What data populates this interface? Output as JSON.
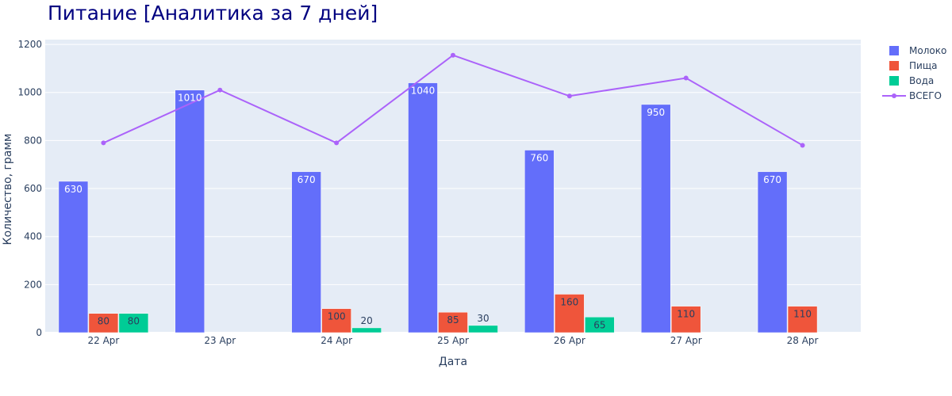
{
  "chart_data": {
    "type": "bar",
    "title": "Питание [Аналитика за 7 дней]",
    "xlabel": "Дата",
    "ylabel": "Количество, грамм",
    "categories": [
      "22 Apr",
      "23 Apr",
      "24 Apr",
      "25 Apr",
      "26 Apr",
      "27 Apr",
      "28 Apr"
    ],
    "ylim": [
      0,
      1220
    ],
    "yticks": [
      0,
      200,
      400,
      600,
      800,
      1000,
      1200
    ],
    "grid": true,
    "legend_position": "right",
    "series": [
      {
        "name": "Молоко",
        "kind": "bar",
        "color": "#636efa",
        "values": [
          630,
          1010,
          670,
          1040,
          760,
          950,
          670
        ],
        "label_color": "#ffffff",
        "label_position": "inside-top"
      },
      {
        "name": "Пища",
        "kind": "bar",
        "color": "#ef553b",
        "values": [
          80,
          null,
          100,
          85,
          160,
          110,
          110
        ],
        "label_color": "#2a3f5f",
        "label_position": "inside-top"
      },
      {
        "name": "Вода",
        "kind": "bar",
        "color": "#00cc96",
        "values": [
          80,
          null,
          20,
          30,
          65,
          null,
          null
        ],
        "label_color": "#2a3f5f",
        "label_position": "auto"
      },
      {
        "name": "ВСЕГО",
        "kind": "line",
        "color": "#ab63fa",
        "values": [
          790,
          1010,
          790,
          1155,
          985,
          1060,
          780
        ]
      }
    ],
    "plot_bg": "#e5ecf6",
    "grid_color": "#ffffff",
    "title_color": "#000080",
    "text_color": "#2a3f5f"
  }
}
